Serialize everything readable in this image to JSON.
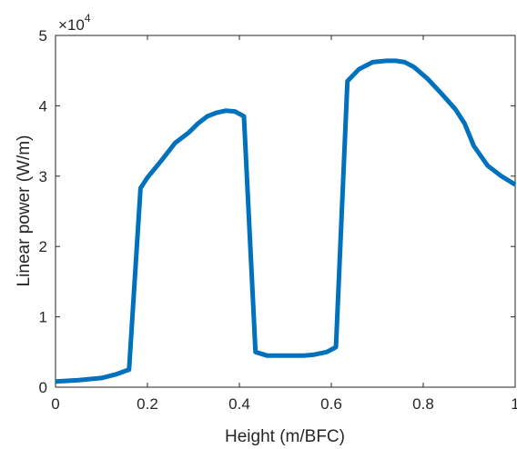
{
  "chart_data": {
    "type": "line",
    "xlabel": "Height (m/BFC)",
    "ylabel": "Linear power (W/m)",
    "xlim": [
      0,
      1
    ],
    "ylim": [
      0,
      5
    ],
    "y_multiplier": {
      "base": "10",
      "exponent": "4",
      "prefix": "×"
    },
    "xticks": [
      0,
      0.2,
      0.4,
      0.6,
      0.8,
      1
    ],
    "xtick_labels": [
      "0",
      "0.2",
      "0.4",
      "0.6",
      "0.8",
      "1"
    ],
    "yticks": [
      0,
      1,
      2,
      3,
      4,
      5
    ],
    "ytick_labels": [
      "0",
      "1",
      "2",
      "3",
      "4",
      "5"
    ],
    "grid": false,
    "box": true,
    "series": [
      {
        "color": "#0072BD",
        "x": [
          0,
          0.05,
          0.1,
          0.13,
          0.16,
          0.185,
          0.2,
          0.23,
          0.26,
          0.29,
          0.31,
          0.33,
          0.35,
          0.37,
          0.39,
          0.41,
          0.435,
          0.46,
          0.5,
          0.54,
          0.56,
          0.59,
          0.61,
          0.635,
          0.66,
          0.69,
          0.72,
          0.74,
          0.76,
          0.78,
          0.81,
          0.84,
          0.87,
          0.89,
          0.91,
          0.94,
          0.97,
          1.0
        ],
        "y": [
          0.08,
          0.1,
          0.13,
          0.18,
          0.25,
          2.83,
          2.98,
          3.22,
          3.47,
          3.62,
          3.75,
          3.85,
          3.9,
          3.93,
          3.92,
          3.85,
          0.5,
          0.45,
          0.45,
          0.45,
          0.46,
          0.5,
          0.57,
          4.35,
          4.52,
          4.62,
          4.64,
          4.64,
          4.62,
          4.55,
          4.38,
          4.17,
          3.95,
          3.75,
          3.43,
          3.15,
          3.0,
          2.88
        ]
      }
    ]
  }
}
